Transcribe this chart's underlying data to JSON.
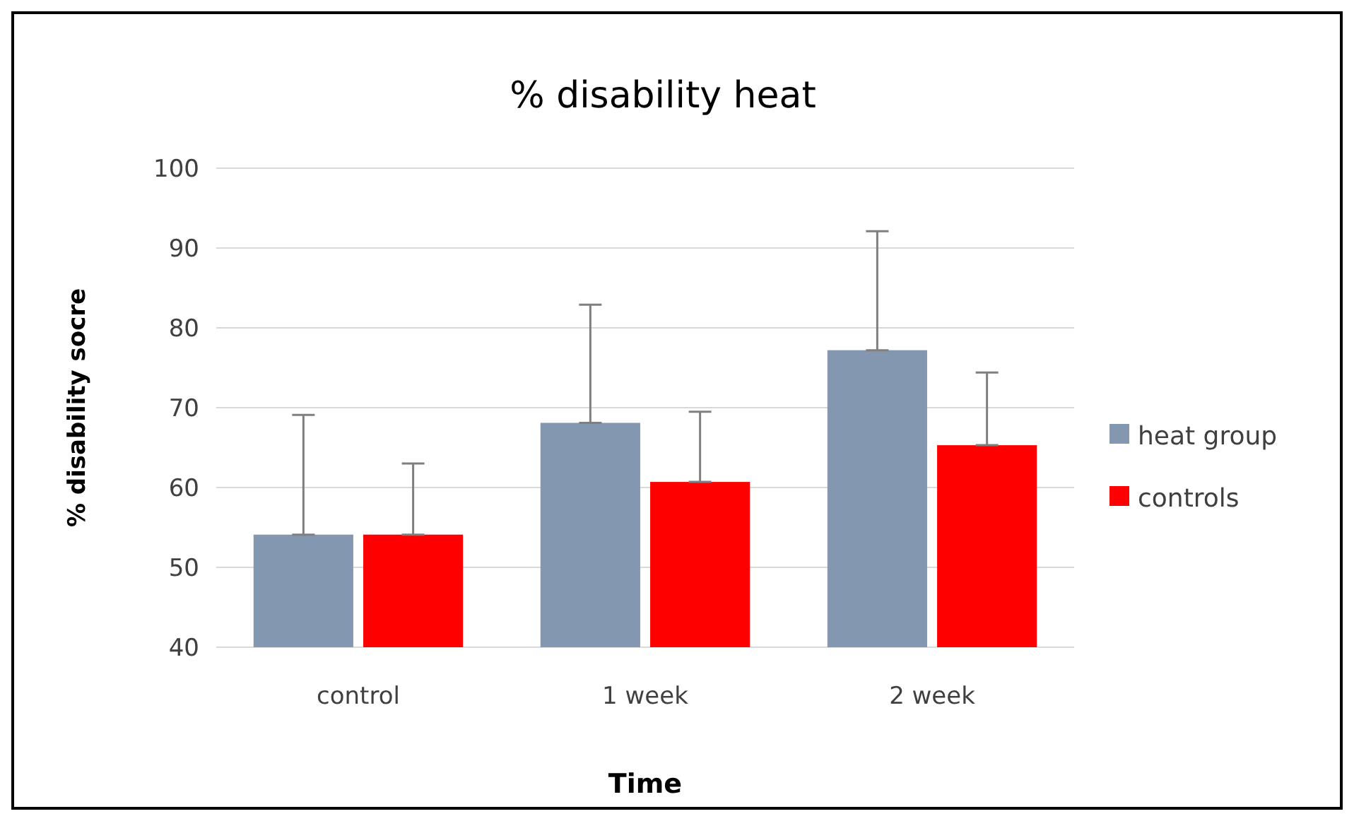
{
  "chart_data": {
    "type": "bar",
    "title": "% disability  heat",
    "xlabel": "Time",
    "ylabel": "% disability socre",
    "categories": [
      "control",
      "1 week",
      "2 week"
    ],
    "series": [
      {
        "name": "heat group",
        "color": "#8497b0",
        "values": [
          54.1,
          68.1,
          77.2
        ],
        "errors": [
          [
            54.1,
            69.1
          ],
          [
            68.1,
            82.9
          ],
          [
            77.2,
            92.1
          ]
        ]
      },
      {
        "name": "controls",
        "color": "#ff0000",
        "values": [
          54.1,
          60.7,
          65.3
        ],
        "errors": [
          [
            54.1,
            63.0
          ],
          [
            60.7,
            69.5
          ],
          [
            65.3,
            74.4
          ]
        ]
      }
    ],
    "ylim": [
      40,
      100
    ],
    "yticks": [
      40,
      50,
      60,
      70,
      80,
      90,
      100
    ],
    "grid": "y",
    "legend": "right"
  }
}
